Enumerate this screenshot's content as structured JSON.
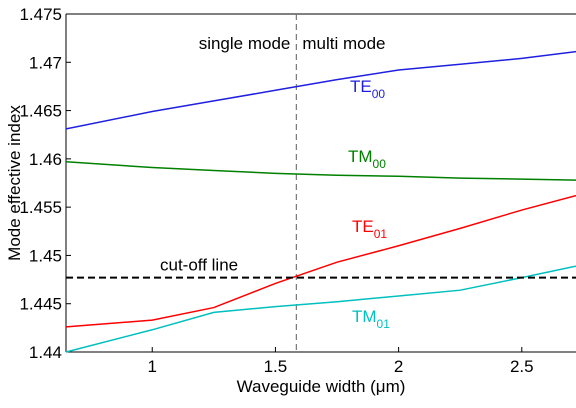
{
  "chart_data": {
    "type": "line",
    "xlabel": "Waveguide width (μm)",
    "ylabel": "Mode effective index",
    "x": [
      0.65,
      1,
      1.25,
      1.5,
      1.75,
      2,
      2.25,
      2.5,
      2.72
    ],
    "series": [
      {
        "name": "TE",
        "subscript": "00",
        "color": "#1f1fe0",
        "values": [
          1.4631,
          1.4649,
          1.466,
          1.4671,
          1.4682,
          1.4692,
          1.4698,
          1.4704,
          1.4711
        ]
      },
      {
        "name": "TM",
        "subscript": "00",
        "color": "#008000",
        "values": [
          1.4597,
          1.4591,
          1.4588,
          1.4585,
          1.4583,
          1.4582,
          1.458,
          1.4579,
          1.4578
        ]
      },
      {
        "name": "TE",
        "subscript": "01",
        "color": "#ff0000",
        "values": [
          1.4426,
          1.4433,
          1.4446,
          1.4471,
          1.4493,
          1.451,
          1.4528,
          1.4547,
          1.4562
        ]
      },
      {
        "name": "TM",
        "subscript": "01",
        "color": "#00bfbf",
        "values": [
          1.44,
          1.4423,
          1.4441,
          1.4447,
          1.4452,
          1.4458,
          1.4464,
          1.4477,
          1.4489
        ]
      }
    ],
    "cutoff": {
      "label": "cut-off line",
      "value": 1.4477
    },
    "mode_boundary": {
      "value": 1.585,
      "left_label": "single mode",
      "right_label": "multi mode"
    },
    "xlim": [
      0.65,
      2.72
    ],
    "xticks": [
      1,
      1.5,
      2,
      2.5
    ],
    "ylim": [
      1.44,
      1.475
    ],
    "yticks": [
      1.44,
      1.445,
      1.45,
      1.455,
      1.46,
      1.465,
      1.47,
      1.475
    ]
  }
}
